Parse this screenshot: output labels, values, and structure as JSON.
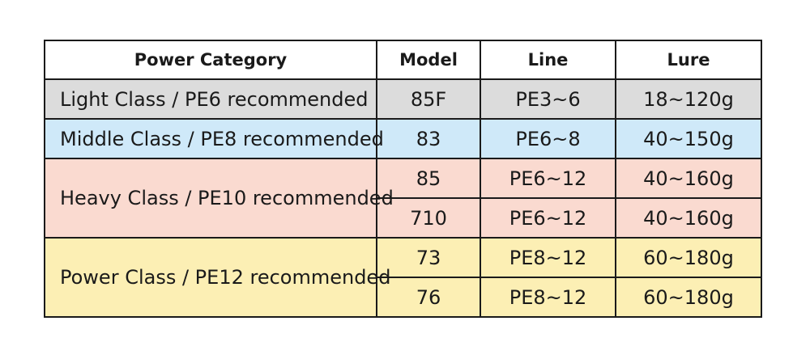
{
  "table": {
    "headers": [
      "Power Category",
      "Model",
      "Line",
      "Lure"
    ],
    "groups": [
      {
        "category": "Light Class / PE6 recommended",
        "rows": [
          {
            "model": "85F",
            "line": "PE3~6",
            "lure": "18~120g"
          }
        ]
      },
      {
        "category": "Middle Class / PE8 recommended",
        "rows": [
          {
            "model": "83",
            "line": "PE6~8",
            "lure": "40~150g"
          }
        ]
      },
      {
        "category": "Heavy Class / PE10 recommended",
        "rows": [
          {
            "model": "85",
            "line": "PE6~12",
            "lure": "40~160g"
          },
          {
            "model": "710",
            "line": "PE6~12",
            "lure": "40~160g"
          }
        ]
      },
      {
        "category": "Power Class / PE12 recommended",
        "rows": [
          {
            "model": "73",
            "line": "PE8~12",
            "lure": "60~180g"
          },
          {
            "model": "76",
            "line": "PE8~12",
            "lure": "60~180g"
          }
        ]
      }
    ]
  },
  "colors": {
    "light": "#dcdcdc",
    "middle": "#cfe9f9",
    "heavy": "#fadad0",
    "power": "#fcefb4",
    "border": "#1a1a1a"
  }
}
